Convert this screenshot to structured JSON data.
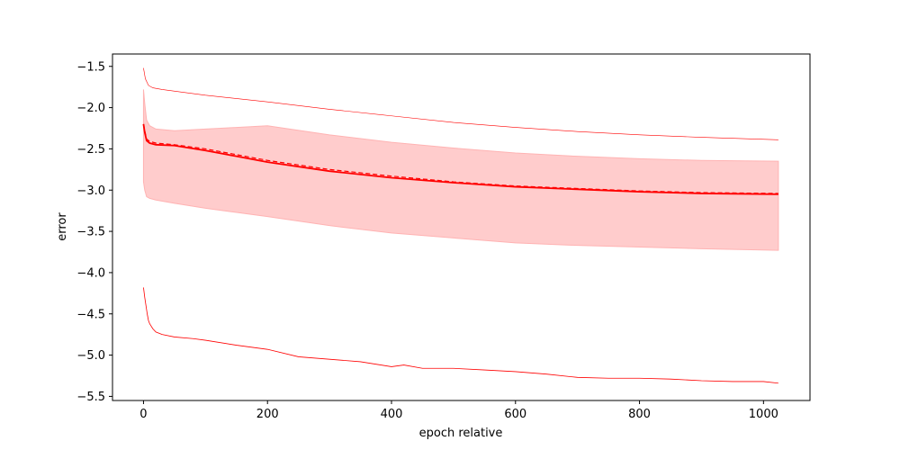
{
  "chart_data": {
    "type": "line",
    "title": "",
    "xlabel": "epoch relative",
    "ylabel": "error",
    "xlim": [
      -50,
      1075
    ],
    "ylim": [
      -5.55,
      -1.35
    ],
    "xticks": [
      0,
      200,
      400,
      600,
      800,
      1000
    ],
    "xtick_labels": [
      "0",
      "200",
      "400",
      "600",
      "800",
      "1000"
    ],
    "yticks": [
      -5.5,
      -5.0,
      -4.5,
      -4.0,
      -3.5,
      -3.0,
      -2.5,
      -2.0,
      -1.5
    ],
    "ytick_labels": [
      "−5.5",
      "−5.0",
      "−4.5",
      "−4.0",
      "−3.5",
      "−3.0",
      "−2.5",
      "−2.0",
      "−1.5"
    ],
    "grid": false,
    "colors": {
      "series": "#ff0000",
      "band_fill": "#ffcccc",
      "band_edge": "#ffb3b3"
    },
    "band": {
      "x": [
        0,
        2,
        5,
        10,
        20,
        50,
        100,
        150,
        200,
        300,
        400,
        500,
        600,
        700,
        800,
        900,
        1024
      ],
      "upper": [
        -1.78,
        -1.95,
        -2.15,
        -2.22,
        -2.26,
        -2.28,
        -2.26,
        -2.24,
        -2.22,
        -2.33,
        -2.42,
        -2.49,
        -2.55,
        -2.59,
        -2.62,
        -2.64,
        -2.65
      ],
      "lower": [
        -2.9,
        -3.0,
        -3.08,
        -3.1,
        -3.12,
        -3.16,
        -3.22,
        -3.27,
        -3.32,
        -3.43,
        -3.52,
        -3.58,
        -3.64,
        -3.67,
        -3.69,
        -3.71,
        -3.73
      ]
    },
    "series": [
      {
        "style": "solid",
        "x": [
          0,
          2,
          5,
          10,
          20,
          50,
          100,
          150,
          200,
          300,
          400,
          500,
          600,
          700,
          800,
          900,
          1024
        ],
        "values": [
          -2.2,
          -2.3,
          -2.4,
          -2.43,
          -2.45,
          -2.46,
          -2.52,
          -2.59,
          -2.66,
          -2.77,
          -2.85,
          -2.91,
          -2.96,
          -2.99,
          -3.02,
          -3.04,
          -3.05
        ]
      },
      {
        "style": "dashed",
        "x": [
          0,
          2,
          5,
          10,
          20,
          50,
          100,
          150,
          200,
          300,
          400,
          500,
          600,
          700,
          800,
          900,
          1024
        ],
        "values": [
          -2.2,
          -2.28,
          -2.38,
          -2.41,
          -2.43,
          -2.45,
          -2.5,
          -2.57,
          -2.64,
          -2.75,
          -2.83,
          -2.9,
          -2.95,
          -2.98,
          -3.01,
          -3.03,
          -3.04
        ]
      },
      {
        "style": "thin",
        "x": [
          0,
          3,
          8,
          15,
          30,
          60,
          100,
          200,
          300,
          400,
          500,
          600,
          700,
          800,
          900,
          1024
        ],
        "values": [
          -1.52,
          -1.65,
          -1.73,
          -1.76,
          -1.78,
          -1.81,
          -1.85,
          -1.93,
          -2.02,
          -2.1,
          -2.18,
          -2.24,
          -2.29,
          -2.33,
          -2.36,
          -2.39
        ]
      },
      {
        "style": "noisy",
        "x": [
          0,
          2,
          4,
          6,
          8,
          10,
          15,
          20,
          30,
          50,
          80,
          100,
          150,
          200,
          250,
          300,
          350,
          400,
          420,
          450,
          500,
          550,
          600,
          650,
          700,
          750,
          800,
          850,
          900,
          950,
          1000,
          1024
        ],
        "values": [
          -4.18,
          -4.3,
          -4.4,
          -4.5,
          -4.58,
          -4.62,
          -4.68,
          -4.72,
          -4.75,
          -4.78,
          -4.8,
          -4.82,
          -4.88,
          -4.93,
          -5.02,
          -5.05,
          -5.08,
          -5.14,
          -5.12,
          -5.16,
          -5.16,
          -5.18,
          -5.2,
          -5.23,
          -5.27,
          -5.28,
          -5.28,
          -5.29,
          -5.31,
          -5.32,
          -5.32,
          -5.34
        ]
      }
    ]
  }
}
